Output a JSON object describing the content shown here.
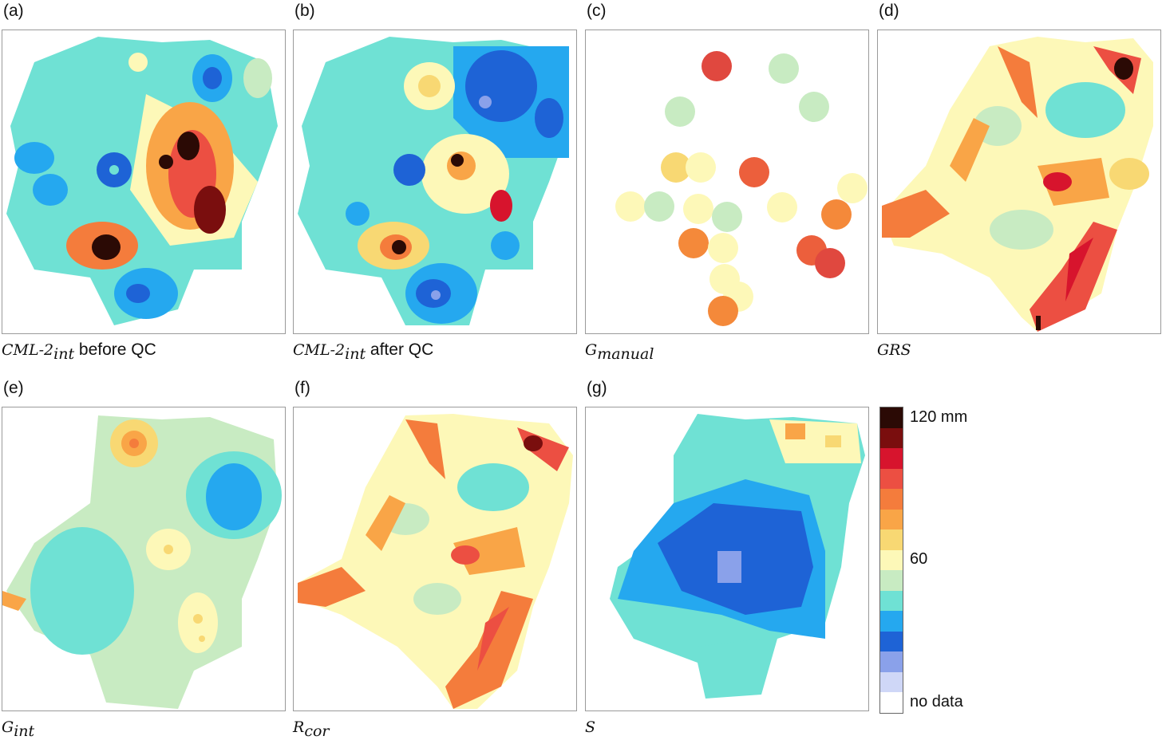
{
  "panels": [
    {
      "letter": "(a)",
      "caption_sym": "CML-2",
      "caption_sub": "int",
      "caption_text": "before QC"
    },
    {
      "letter": "(b)",
      "caption_sym": "CML-2",
      "caption_sub": "int",
      "caption_text": "after QC"
    },
    {
      "letter": "(c)",
      "caption_sym": "G",
      "caption_sub": "manual",
      "caption_text": ""
    },
    {
      "letter": "(d)",
      "caption_sym": "GRS",
      "caption_sub": "",
      "caption_text": ""
    },
    {
      "letter": "(e)",
      "caption_sym": "G",
      "caption_sub": "int",
      "caption_text": ""
    },
    {
      "letter": "(f)",
      "caption_sym": "R",
      "caption_sub": "cor",
      "caption_text": ""
    },
    {
      "letter": "(g)",
      "caption_sym": "S",
      "caption_sub": "",
      "caption_text": ""
    }
  ],
  "colorbar": {
    "labels": {
      "top": "120 mm",
      "middle": "60",
      "bottom": "no data"
    },
    "colors": [
      "#2b0a05",
      "#7a0e0e",
      "#d7142d",
      "#ec4f42",
      "#f47c3c",
      "#f9a547",
      "#f8d873",
      "#fdf8b8",
      "#c8ebc2",
      "#6fe1d4",
      "#25a8ef",
      "#1e63d6",
      "#8aa1ea",
      "#cfd7f7",
      "#ffffff"
    ]
  }
}
